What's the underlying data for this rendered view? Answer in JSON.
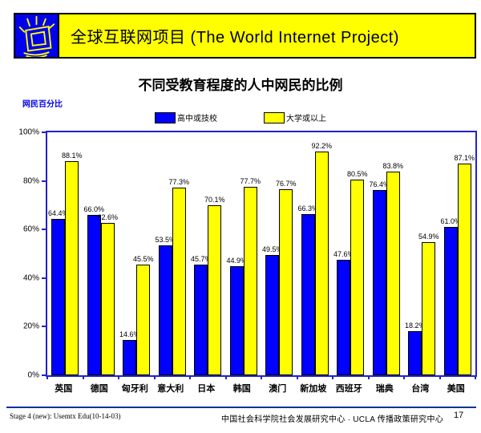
{
  "header": {
    "title": "全球互联网项目 (The World Internet Project)",
    "logo": "shining-screen-icon"
  },
  "subtitle": "不同受教育程度的人中网民的比例",
  "colors": {
    "header_background": "#FFFF00",
    "logo_background": "#0000EE",
    "axis_border": "#2222CC",
    "series_high_school": "#0000FF",
    "series_university": "#FFFF00",
    "footer_line": "#003399",
    "y_axis_label_color": "#0000EE"
  },
  "chart_data": {
    "type": "bar",
    "title": "不同受教育程度的人中网民的比例",
    "ylabel": "网民百分比",
    "xlabel": "",
    "ylim": [
      0,
      100
    ],
    "grid": false,
    "legend_position": "top",
    "y_ticks": [
      "100%",
      "80%",
      "60%",
      "40%",
      "20%",
      "0%"
    ],
    "categories": [
      "英国",
      "德国",
      "匈牙利",
      "意大利",
      "日本",
      "韩国",
      "澳门",
      "新加坡",
      "西班牙",
      "瑞典",
      "台湾",
      "美国"
    ],
    "series": [
      {
        "name": "高中或技校",
        "color": "#0000FF",
        "values": [
          64.4,
          66.0,
          14.6,
          53.5,
          45.7,
          44.9,
          49.5,
          66.3,
          47.6,
          76.4,
          18.2,
          61.0
        ]
      },
      {
        "name": "大学或以上",
        "color": "#FFFF00",
        "values": [
          88.1,
          62.6,
          45.5,
          77.3,
          70.1,
          77.7,
          76.7,
          92.2,
          80.5,
          83.8,
          54.9,
          87.1
        ]
      }
    ]
  },
  "footer": {
    "left": "Stage 4 (new): Usemtx Edu(10-14-03)",
    "center": "中国社会科学院社会发展研究中心 · UCLA 传播政策研究中心",
    "page": "17"
  }
}
